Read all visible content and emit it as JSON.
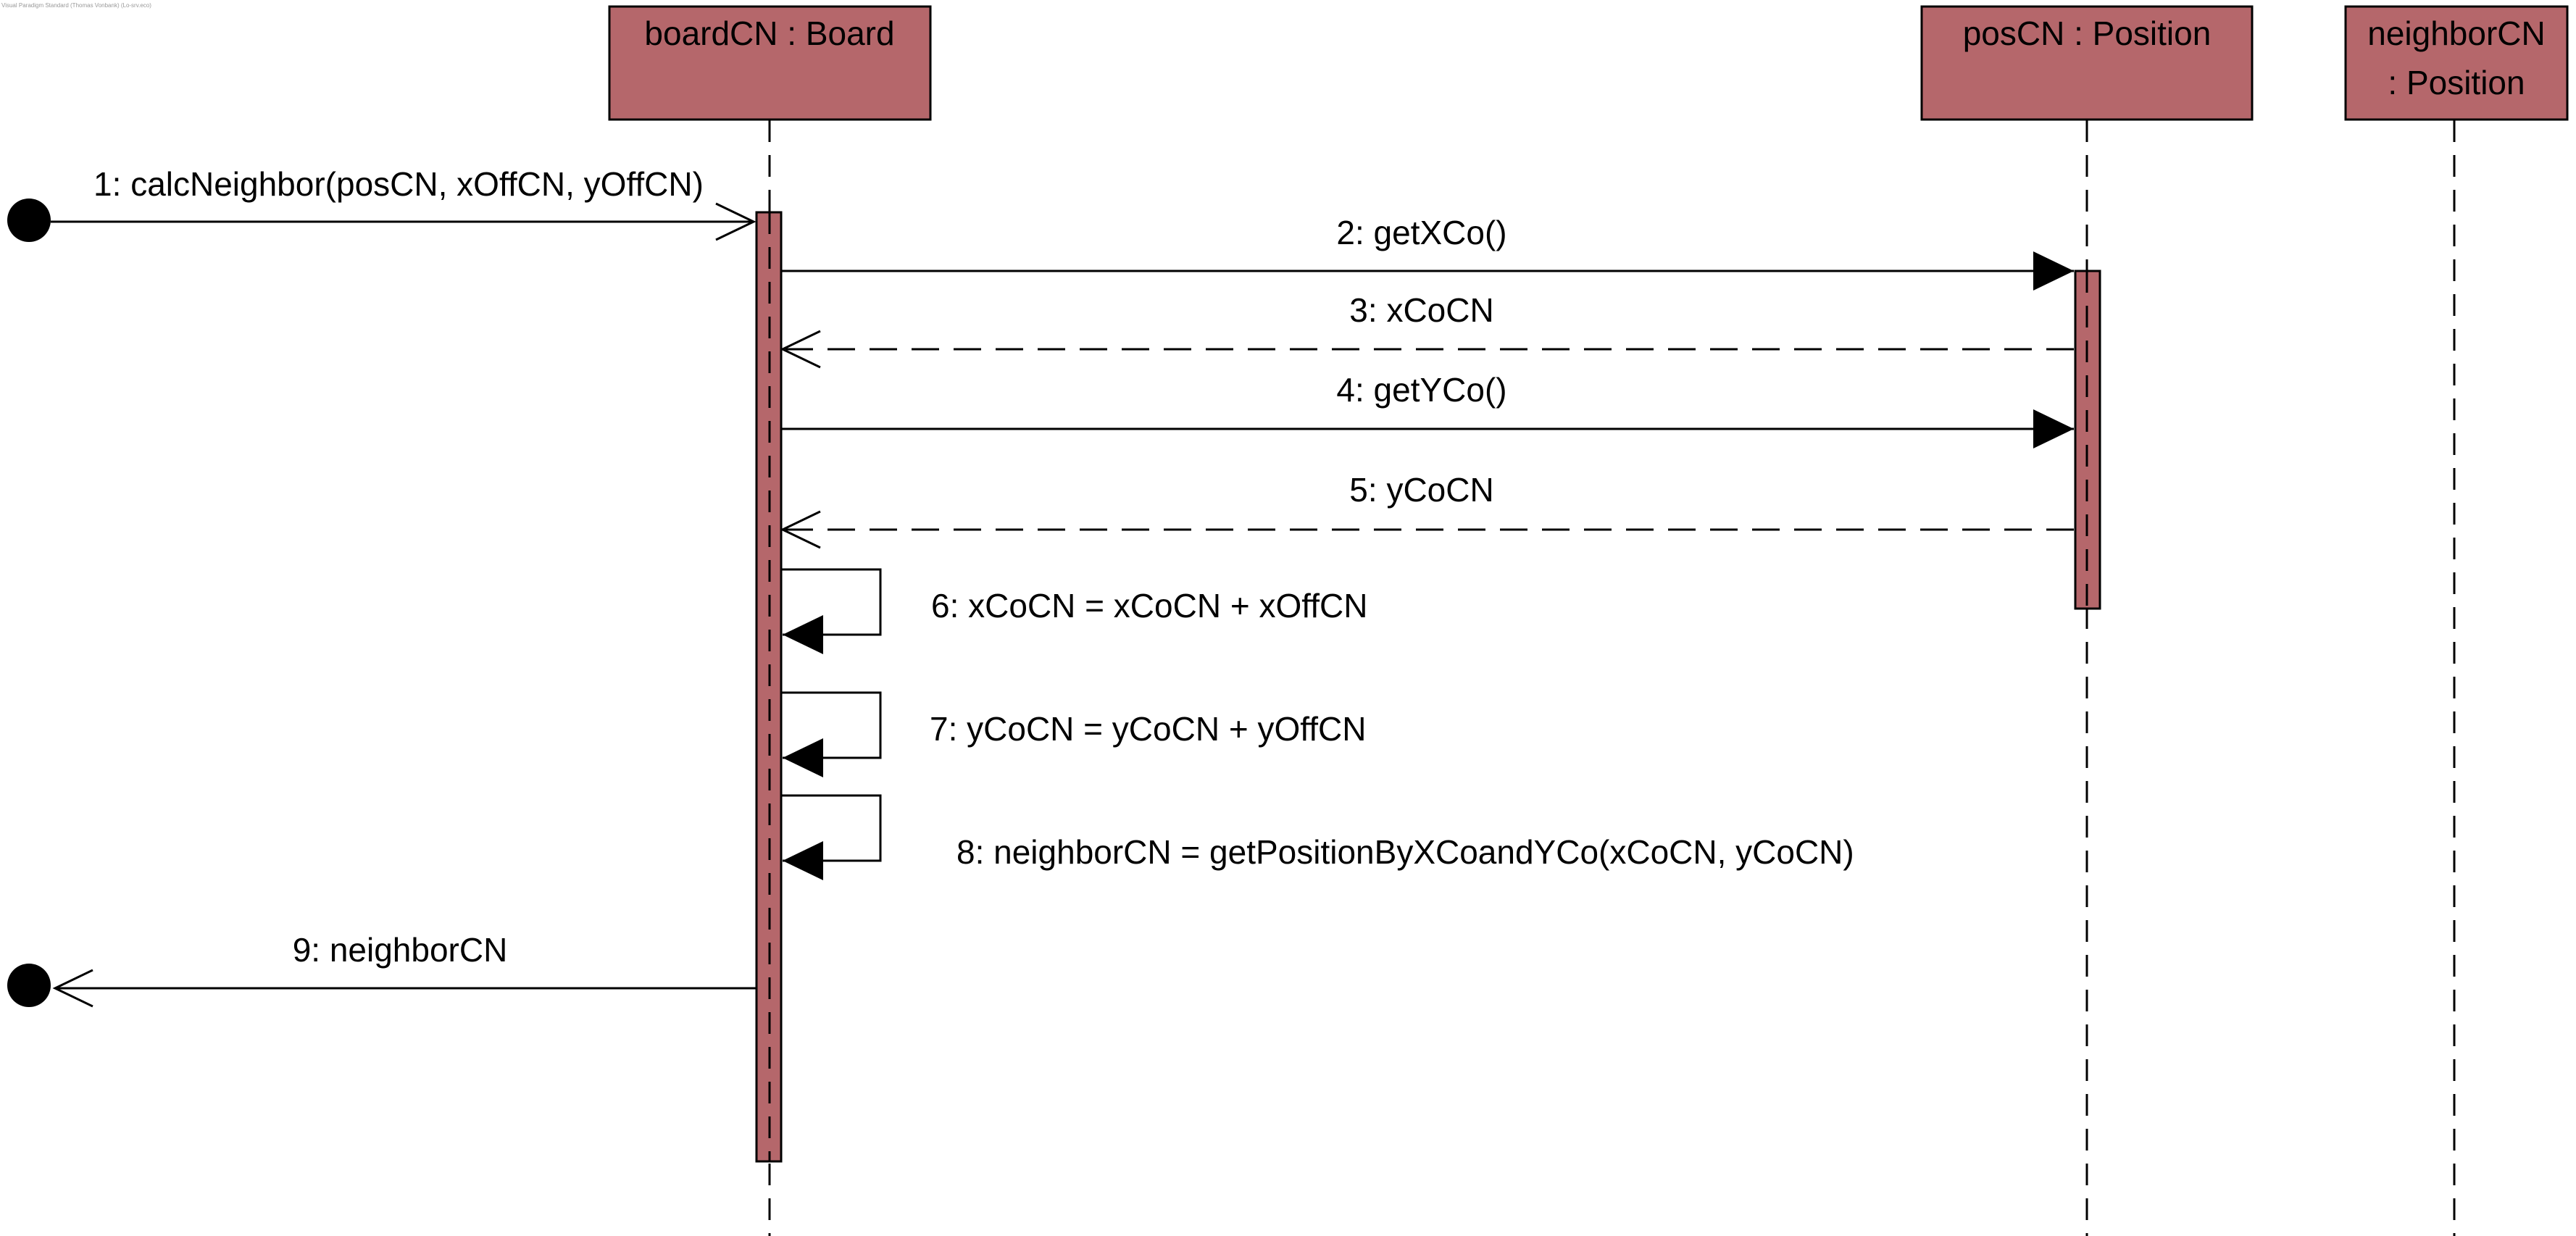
{
  "watermark": "Visual Paradigm Standard (Thomas Vonbank) (Lo-srv.eco)",
  "lifelines": [
    {
      "id": "board",
      "label_lines": [
        "boardCN : Board"
      ]
    },
    {
      "id": "pos",
      "label_lines": [
        "posCN : Position"
      ]
    },
    {
      "id": "neighbor",
      "label_lines": [
        "neighborCN",
        ": Position"
      ]
    }
  ],
  "messages": [
    {
      "id": "m1",
      "label": "1: calcNeighbor(posCN, xOffCN, yOffCN)"
    },
    {
      "id": "m2",
      "label": "2: getXCo()"
    },
    {
      "id": "m3",
      "label": "3: xCoCN"
    },
    {
      "id": "m4",
      "label": "4: getYCo()"
    },
    {
      "id": "m5",
      "label": "5: yCoCN"
    },
    {
      "id": "m6",
      "label": "6: xCoCN = xCoCN + xOffCN"
    },
    {
      "id": "m7",
      "label": "7: yCoCN = yCoCN + yOffCN"
    },
    {
      "id": "m8",
      "label": "8: neighborCN = getPositionByXCoandYCo(xCoCN, yCoCN)"
    },
    {
      "id": "m9",
      "label": "9: neighborCN"
    }
  ],
  "colors": {
    "box_fill": "#b5676b",
    "line": "#000000"
  }
}
